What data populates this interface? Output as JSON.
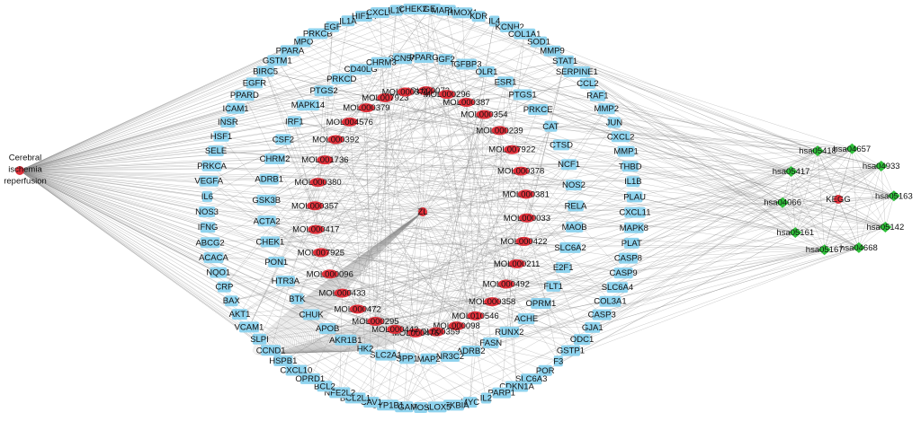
{
  "disease": {
    "lines": [
      "Cerebral",
      "ischemia",
      "reperfusion"
    ]
  },
  "herb": "ZL",
  "hub": "KEGG",
  "pathways": [
    "hsa04657",
    "hsa04933",
    "hsa05163",
    "hsa05142",
    "hsa04668",
    "hsa05167",
    "hsa05161",
    "hsa04066",
    "hsa05417",
    "hsa05418"
  ],
  "compounds": [
    "MOL000073",
    "MOL000296",
    "MOL000387",
    "MOL000354",
    "MOL000239",
    "MOL007922",
    "MOL000378",
    "MOL000381",
    "MOL000033",
    "MOL000422",
    "MOL000211",
    "MOL000492",
    "MOL000358",
    "MOL010546",
    "MOL000098",
    "MOL000359",
    "MOL000476",
    "MOL000442",
    "MOL000295",
    "MOL000472",
    "MOL000433",
    "MOL000096",
    "MOL007925",
    "MOL000417",
    "MOL000357",
    "MOL000380",
    "MOL001736",
    "MOL000392",
    "MOL004576",
    "MOL000379",
    "MOL007923",
    "MOL000371"
  ],
  "inner_targets": [
    "SCN5A",
    "PPARG",
    "IGF2",
    "IGFBP3",
    "OLR1",
    "ESR1",
    "PTGS1",
    "PRKCE",
    "CAT",
    "CTSD",
    "NCF1",
    "NOS2",
    "RELA",
    "MAOB",
    "SLC6A2",
    "E2F1",
    "FLT1",
    "OPRM1",
    "ACHE",
    "RUNX2",
    "FASN",
    "ADRB2",
    "NR3C2",
    "MAP2",
    "SPP1",
    "SLC2A1",
    "HK2",
    "AKR1B1",
    "APOB",
    "CHUK",
    "BTK",
    "HTR3A",
    "PON1",
    "CHEK1",
    "ACTA2",
    "GSK3B",
    "ADRB1",
    "CHRM2",
    "CSF2",
    "IRF1",
    "MAPK14",
    "PTGS2",
    "PRKCD",
    "CD40LG",
    "CHRM3"
  ],
  "outer_targets": [
    "PTGER3",
    "MAPK1",
    "HMOX1",
    "KDR",
    "IL4",
    "KCNH2",
    "COL1A1",
    "SOD1",
    "MMP9",
    "STAT1",
    "SERPINE1",
    "CCL2",
    "RAF1",
    "MMP2",
    "JUN",
    "CXCL2",
    "MMP1",
    "THBD",
    "IL1B",
    "PLAU",
    "CXCL11",
    "MAPK8",
    "PLAT",
    "CASP8",
    "CASP9",
    "SLC6A4",
    "COL3A1",
    "CASP3",
    "GJA1",
    "ODC1",
    "GSTP1",
    "F3",
    "POR",
    "SLC6A3",
    "CDKN1A",
    "PARP1",
    "IL2",
    "MYC",
    "NFKBIA",
    "ALOX5",
    "FOS",
    "MGAM",
    "CYP1B1",
    "CAV1",
    "BCL2L1",
    "NFE2L2",
    "BCL2",
    "OPRD1",
    "CXCL10",
    "HSPB1",
    "CCND1",
    "SLPI",
    "VCAM1",
    "AKT1",
    "BAX",
    "CRP",
    "NQO1",
    "ACACA",
    "ABCG2",
    "IFNG",
    "NOS3",
    "IL6",
    "VEGFA",
    "PRKCA",
    "SELE",
    "HSF1",
    "INSR",
    "ICAM1",
    "PPARD",
    "EGFR",
    "BIRC5",
    "GSTM1",
    "PPARA",
    "MPO",
    "PRKCB",
    "EGF",
    "IL1A",
    "HIF1A",
    "CXCL8",
    "IL10",
    "CHEK2"
  ]
}
